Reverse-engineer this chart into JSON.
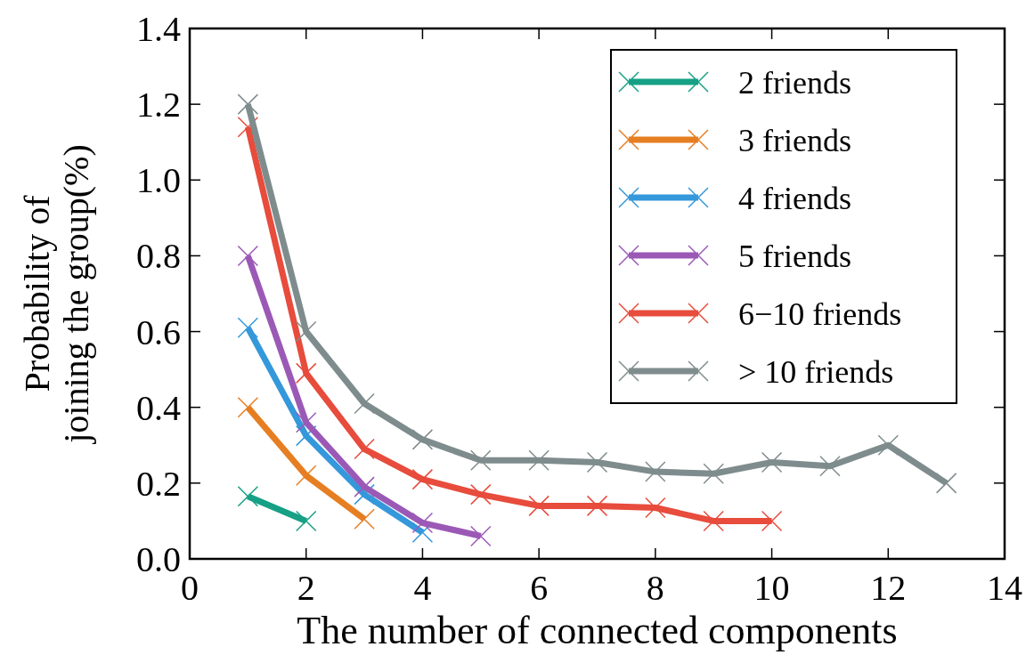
{
  "chart_data": {
    "type": "line",
    "xlabel": "The number of connected components",
    "ylabel": "Probability of\njoining the group(%)",
    "xlim": [
      0,
      14
    ],
    "xticks": [
      0,
      2,
      4,
      6,
      8,
      10,
      12,
      14
    ],
    "ylim": [
      0,
      1.4
    ],
    "yticks": [
      {
        "value": 0,
        "label": "0.0"
      },
      0.2,
      0.4,
      0.6,
      0.8,
      {
        "value": 1,
        "label": "1.0"
      },
      1.2,
      1.4
    ],
    "grid": false,
    "legend": "top right",
    "marker": "cross",
    "line_style": "solid",
    "series": [
      {
        "name": "2 friends",
        "color": "#16a085",
        "x": [
          1,
          2
        ],
        "values": [
          0.165,
          0.1
        ]
      },
      {
        "name": "3 friends",
        "color": "#e67e22",
        "x": [
          1,
          2,
          3
        ],
        "values": [
          0.4,
          0.22,
          0.105
        ]
      },
      {
        "name": "4 friends",
        "color": "#3498db",
        "x": [
          1,
          2,
          3,
          4
        ],
        "values": [
          0.61,
          0.325,
          0.17,
          0.07
        ]
      },
      {
        "name": "5 friends",
        "color": "#9b59b6",
        "x": [
          1,
          2,
          3,
          4,
          5
        ],
        "values": [
          0.8,
          0.36,
          0.19,
          0.095,
          0.06
        ]
      },
      {
        "name": "6−10 friends",
        "color": "#e74c3c",
        "x": [
          1,
          2,
          3,
          4,
          5,
          6,
          7,
          8,
          9,
          10
        ],
        "values": [
          1.14,
          0.49,
          0.29,
          0.21,
          0.17,
          0.14,
          0.14,
          0.135,
          0.1,
          0.1
        ]
      },
      {
        "name": "> 10 friends",
        "color": "#7f8c8d",
        "x": [
          1,
          2,
          3,
          4,
          5,
          6,
          7,
          8,
          9,
          10,
          11,
          12,
          13
        ],
        "values": [
          1.2,
          0.6,
          0.41,
          0.315,
          0.26,
          0.26,
          0.255,
          0.23,
          0.225,
          0.255,
          0.245,
          0.3,
          0.2
        ]
      }
    ]
  }
}
